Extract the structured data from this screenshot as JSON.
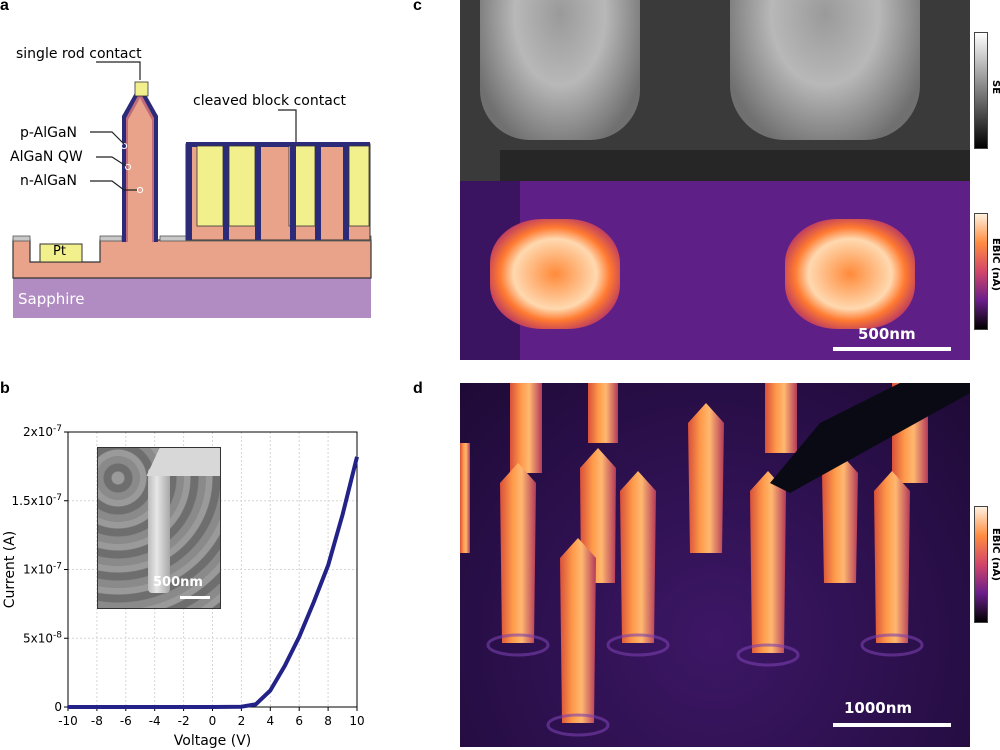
{
  "panels": {
    "a": "a",
    "b": "b",
    "c": "c",
    "d": "d"
  },
  "schematic": {
    "single_rod_contact": "single rod contact",
    "cleaved_block_contact": "cleaved block contact",
    "p_algan": "p-AlGaN",
    "algan_qw": "AlGaN QW",
    "n_algan": "n-AlGaN",
    "pt": "Pt",
    "sapphire": "Sapphire",
    "colors": {
      "algan": "#e8a38a",
      "contact": "#f2f08c",
      "shell": "#2b2b7a",
      "substrate": "#b08cc2",
      "pt_pad": "#f2f08c",
      "pt_edge": "#c8c8c8"
    }
  },
  "chart_data": {
    "type": "line",
    "xlabel": "Voltage (V)",
    "ylabel": "Current (A)",
    "xlim": [
      -10,
      10
    ],
    "ylim": [
      0,
      2e-07
    ],
    "xticks": [
      "-10",
      "-8",
      "-6",
      "-4",
      "-2",
      "0",
      "2",
      "4",
      "6",
      "8",
      "10"
    ],
    "yticks": [
      {
        "value": 0,
        "label": "0",
        "exp": ""
      },
      {
        "value": 5e-08,
        "label": "5x10",
        "exp": "-8"
      },
      {
        "value": 1e-07,
        "label": "1x10",
        "exp": "-7"
      },
      {
        "value": 1.5e-07,
        "label": "1.5x10",
        "exp": "-7"
      },
      {
        "value": 2e-07,
        "label": "2x10",
        "exp": "-7"
      }
    ],
    "grid": true,
    "color": "#222288",
    "x": [
      -10,
      -8,
      -6,
      -4,
      -2,
      0,
      2,
      3,
      4,
      5,
      6,
      7,
      8,
      9,
      10
    ],
    "y": [
      0,
      0,
      0,
      0,
      0,
      0,
      2e-10,
      2e-09,
      1.2e-08,
      3e-08,
      5.1e-08,
      7.6e-08,
      1.03e-07,
      1.4e-07,
      1.82e-07
    ]
  },
  "inset": {
    "scalebar": "500nm"
  },
  "panel_c": {
    "se_label": "SE",
    "ebic_label": "EBIC (nA)",
    "scalebar": "500nm"
  },
  "panel_d": {
    "ebic_label": "EBIC (nA)",
    "scalebar": "1000nm"
  }
}
